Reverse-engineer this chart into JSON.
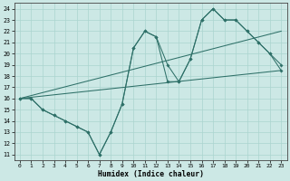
{
  "xlabel": "Humidex (Indice chaleur)",
  "bg_color": "#cce8e5",
  "line_color": "#2e7068",
  "grid_color": "#aad4cf",
  "xlim": [
    -0.5,
    23.5
  ],
  "ylim": [
    10.5,
    24.5
  ],
  "yticks": [
    11,
    12,
    13,
    14,
    15,
    16,
    17,
    18,
    19,
    20,
    21,
    22,
    23,
    24
  ],
  "xticks": [
    0,
    1,
    2,
    3,
    4,
    5,
    6,
    7,
    8,
    9,
    10,
    11,
    12,
    13,
    14,
    15,
    16,
    17,
    18,
    19,
    20,
    21,
    22,
    23
  ],
  "line1_x": [
    0,
    1,
    2,
    3,
    4,
    5,
    6,
    7,
    8,
    9,
    10,
    11,
    12,
    13,
    14,
    15,
    16,
    17,
    18,
    19,
    20,
    21,
    22,
    23
  ],
  "line1_y": [
    16,
    16,
    15,
    14.5,
    14,
    13.5,
    13,
    11,
    13,
    15.5,
    20.5,
    22,
    21.5,
    19,
    17.5,
    19.5,
    23,
    24,
    23,
    23,
    22,
    21,
    20,
    19
  ],
  "line2_x": [
    0,
    1,
    2,
    3,
    4,
    5,
    6,
    7,
    8,
    9,
    10,
    11,
    12,
    13,
    14,
    15,
    16,
    17,
    18,
    19,
    20,
    21,
    22,
    23
  ],
  "line2_y": [
    16,
    16,
    15,
    14.5,
    14,
    13.5,
    13,
    11,
    13,
    15.5,
    20.5,
    22,
    21.5,
    17.5,
    17.5,
    19.5,
    23,
    24,
    23,
    23,
    22,
    21,
    20,
    18.5
  ],
  "line3_x": [
    0,
    23
  ],
  "line3_y": [
    16.0,
    18.5
  ],
  "line4_x": [
    0,
    23
  ],
  "line4_y": [
    16.0,
    22.0
  ]
}
